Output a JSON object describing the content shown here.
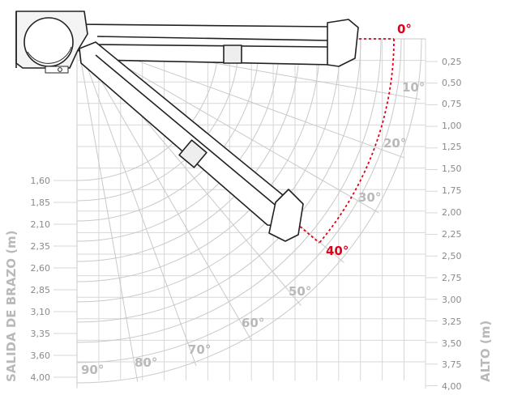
{
  "colors": {
    "grid": "#d7d7d7",
    "arc": "#c9c9c9",
    "label": "#b9b9b9",
    "tick": "#8a8a8a",
    "accent": "#e3001b",
    "outline": "#222222"
  },
  "axes": {
    "left_title": "SALIDA DE BRAZO (m)",
    "right_title": "ALTO (m)",
    "left_ticks": [
      "1,60",
      "1,85",
      "2,10",
      "2,35",
      "2,60",
      "2,85",
      "3,10",
      "3,35",
      "3,60",
      "4,00"
    ],
    "right_ticks": [
      "0,25",
      "0,50",
      "0,75",
      "1,00",
      "1,25",
      "1,50",
      "1,75",
      "2,00",
      "2,25",
      "2,50",
      "2,75",
      "3,00",
      "3,25",
      "3,50",
      "3,75",
      "4,00"
    ]
  },
  "angle_labels": [
    "0°",
    "10°",
    "20°",
    "30°",
    "40°",
    "50°",
    "60°",
    "70°",
    "80°",
    "90°"
  ],
  "highlighted_angles": [
    "0°",
    "40°"
  ],
  "icons": [
    "awning-cassette-icon",
    "awning-arm-icon"
  ]
}
